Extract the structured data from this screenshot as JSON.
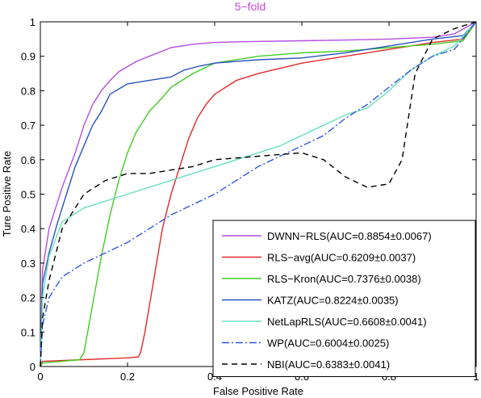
{
  "chart_data": {
    "type": "line",
    "title": "5−fold",
    "title_color": "#cc44dd",
    "xlabel": "False Positive Rate",
    "ylabel": "Ture Positive Rate",
    "xlim": [
      0,
      1
    ],
    "ylim": [
      0,
      1
    ],
    "xticks": [
      "0",
      "0.2",
      "0.4",
      "0.6",
      "0.8",
      "1"
    ],
    "yticks": [
      "0",
      "0.1",
      "0.2",
      "0.3",
      "0.4",
      "0.5",
      "0.6",
      "0.7",
      "0.8",
      "0.9",
      "1"
    ],
    "grid": false,
    "legend_position": "bottom-right",
    "series": [
      {
        "name": "DWNN−RLS(AUC=0.8854±0.0067)",
        "color": "#b44fe0",
        "dash": "solid",
        "x": [
          0,
          0.005,
          0.02,
          0.05,
          0.08,
          0.1,
          0.12,
          0.14,
          0.16,
          0.18,
          0.2,
          0.22,
          0.25,
          0.3,
          0.35,
          0.4,
          0.5,
          0.6,
          0.7,
          0.8,
          0.9,
          0.95,
          1.0
        ],
        "y": [
          0,
          0.28,
          0.4,
          0.52,
          0.62,
          0.7,
          0.76,
          0.8,
          0.83,
          0.855,
          0.87,
          0.885,
          0.9,
          0.925,
          0.935,
          0.94,
          0.943,
          0.945,
          0.947,
          0.95,
          0.955,
          0.965,
          1.0
        ]
      },
      {
        "name": "RLS−avg(AUC=0.6209±0.0037)",
        "color": "#e02a2a",
        "dash": "solid",
        "x": [
          0,
          0.005,
          0.1,
          0.2,
          0.225,
          0.23,
          0.24,
          0.26,
          0.28,
          0.3,
          0.32,
          0.34,
          0.36,
          0.38,
          0.4,
          0.45,
          0.5,
          0.6,
          0.7,
          0.8,
          0.9,
          0.97,
          1.0
        ],
        "y": [
          0,
          0.015,
          0.02,
          0.025,
          0.028,
          0.04,
          0.1,
          0.25,
          0.4,
          0.5,
          0.58,
          0.66,
          0.72,
          0.76,
          0.79,
          0.83,
          0.85,
          0.88,
          0.9,
          0.92,
          0.94,
          0.95,
          1.0
        ]
      },
      {
        "name": "RLS−Kron(AUC=0.7376±0.0038)",
        "color": "#44cc22",
        "dash": "solid",
        "x": [
          0,
          0.005,
          0.05,
          0.09,
          0.1,
          0.12,
          0.14,
          0.16,
          0.18,
          0.2,
          0.22,
          0.25,
          0.28,
          0.3,
          0.35,
          0.4,
          0.5,
          0.6,
          0.7,
          0.8,
          0.9,
          0.97,
          1.0
        ],
        "y": [
          0,
          0.01,
          0.015,
          0.02,
          0.04,
          0.18,
          0.32,
          0.44,
          0.54,
          0.62,
          0.68,
          0.74,
          0.78,
          0.81,
          0.85,
          0.88,
          0.9,
          0.91,
          0.915,
          0.925,
          0.935,
          0.945,
          1.0
        ]
      },
      {
        "name": "KATZ(AUC=0.8224±0.0035)",
        "color": "#2a52be",
        "dash": "solid",
        "x": [
          0,
          0.005,
          0.02,
          0.04,
          0.06,
          0.08,
          0.1,
          0.12,
          0.14,
          0.16,
          0.2,
          0.25,
          0.3,
          0.33,
          0.36,
          0.4,
          0.45,
          0.5,
          0.6,
          0.7,
          0.8,
          0.9,
          0.97,
          1.0
        ],
        "y": [
          0,
          0.24,
          0.33,
          0.42,
          0.5,
          0.58,
          0.64,
          0.7,
          0.74,
          0.79,
          0.82,
          0.83,
          0.84,
          0.86,
          0.87,
          0.88,
          0.885,
          0.89,
          0.895,
          0.91,
          0.93,
          0.95,
          0.96,
          1.0
        ]
      },
      {
        "name": "NetLapRLS(AUC=0.6608±0.0041)",
        "color": "#66e0c0",
        "dash": "solid",
        "x": [
          0,
          0.005,
          0.02,
          0.05,
          0.1,
          0.15,
          0.2,
          0.25,
          0.3,
          0.35,
          0.4,
          0.45,
          0.5,
          0.55,
          0.6,
          0.65,
          0.7,
          0.75,
          0.8,
          0.85,
          0.9,
          0.95,
          1.0
        ],
        "y": [
          0,
          0.2,
          0.32,
          0.42,
          0.46,
          0.48,
          0.5,
          0.52,
          0.54,
          0.56,
          0.58,
          0.6,
          0.62,
          0.64,
          0.67,
          0.7,
          0.73,
          0.75,
          0.8,
          0.86,
          0.9,
          0.93,
          1.0
        ]
      },
      {
        "name": "WP(AUC=0.6004±0.0025)",
        "color": "#3355dd",
        "dash": "dashdot",
        "x": [
          0,
          0.005,
          0.02,
          0.05,
          0.1,
          0.15,
          0.2,
          0.25,
          0.3,
          0.35,
          0.4,
          0.45,
          0.5,
          0.55,
          0.6,
          0.65,
          0.7,
          0.75,
          0.8,
          0.85,
          0.9,
          0.95,
          1.0
        ],
        "y": [
          0,
          0.12,
          0.2,
          0.26,
          0.3,
          0.33,
          0.36,
          0.4,
          0.44,
          0.47,
          0.5,
          0.54,
          0.58,
          0.61,
          0.64,
          0.67,
          0.72,
          0.76,
          0.81,
          0.86,
          0.9,
          0.92,
          1.0
        ]
      },
      {
        "name": "NBI(AUC=0.6383±0.0041)",
        "color": "#000000",
        "dash": "dashed",
        "x": [
          0,
          0.005,
          0.02,
          0.05,
          0.1,
          0.15,
          0.2,
          0.25,
          0.3,
          0.35,
          0.4,
          0.45,
          0.5,
          0.55,
          0.6,
          0.65,
          0.7,
          0.75,
          0.8,
          0.83,
          0.86,
          0.9,
          0.95,
          1.0
        ],
        "y": [
          0,
          0.14,
          0.25,
          0.4,
          0.5,
          0.54,
          0.56,
          0.56,
          0.57,
          0.58,
          0.6,
          0.605,
          0.61,
          0.615,
          0.62,
          0.6,
          0.55,
          0.52,
          0.53,
          0.6,
          0.85,
          0.95,
          0.98,
          1.0
        ]
      }
    ]
  }
}
